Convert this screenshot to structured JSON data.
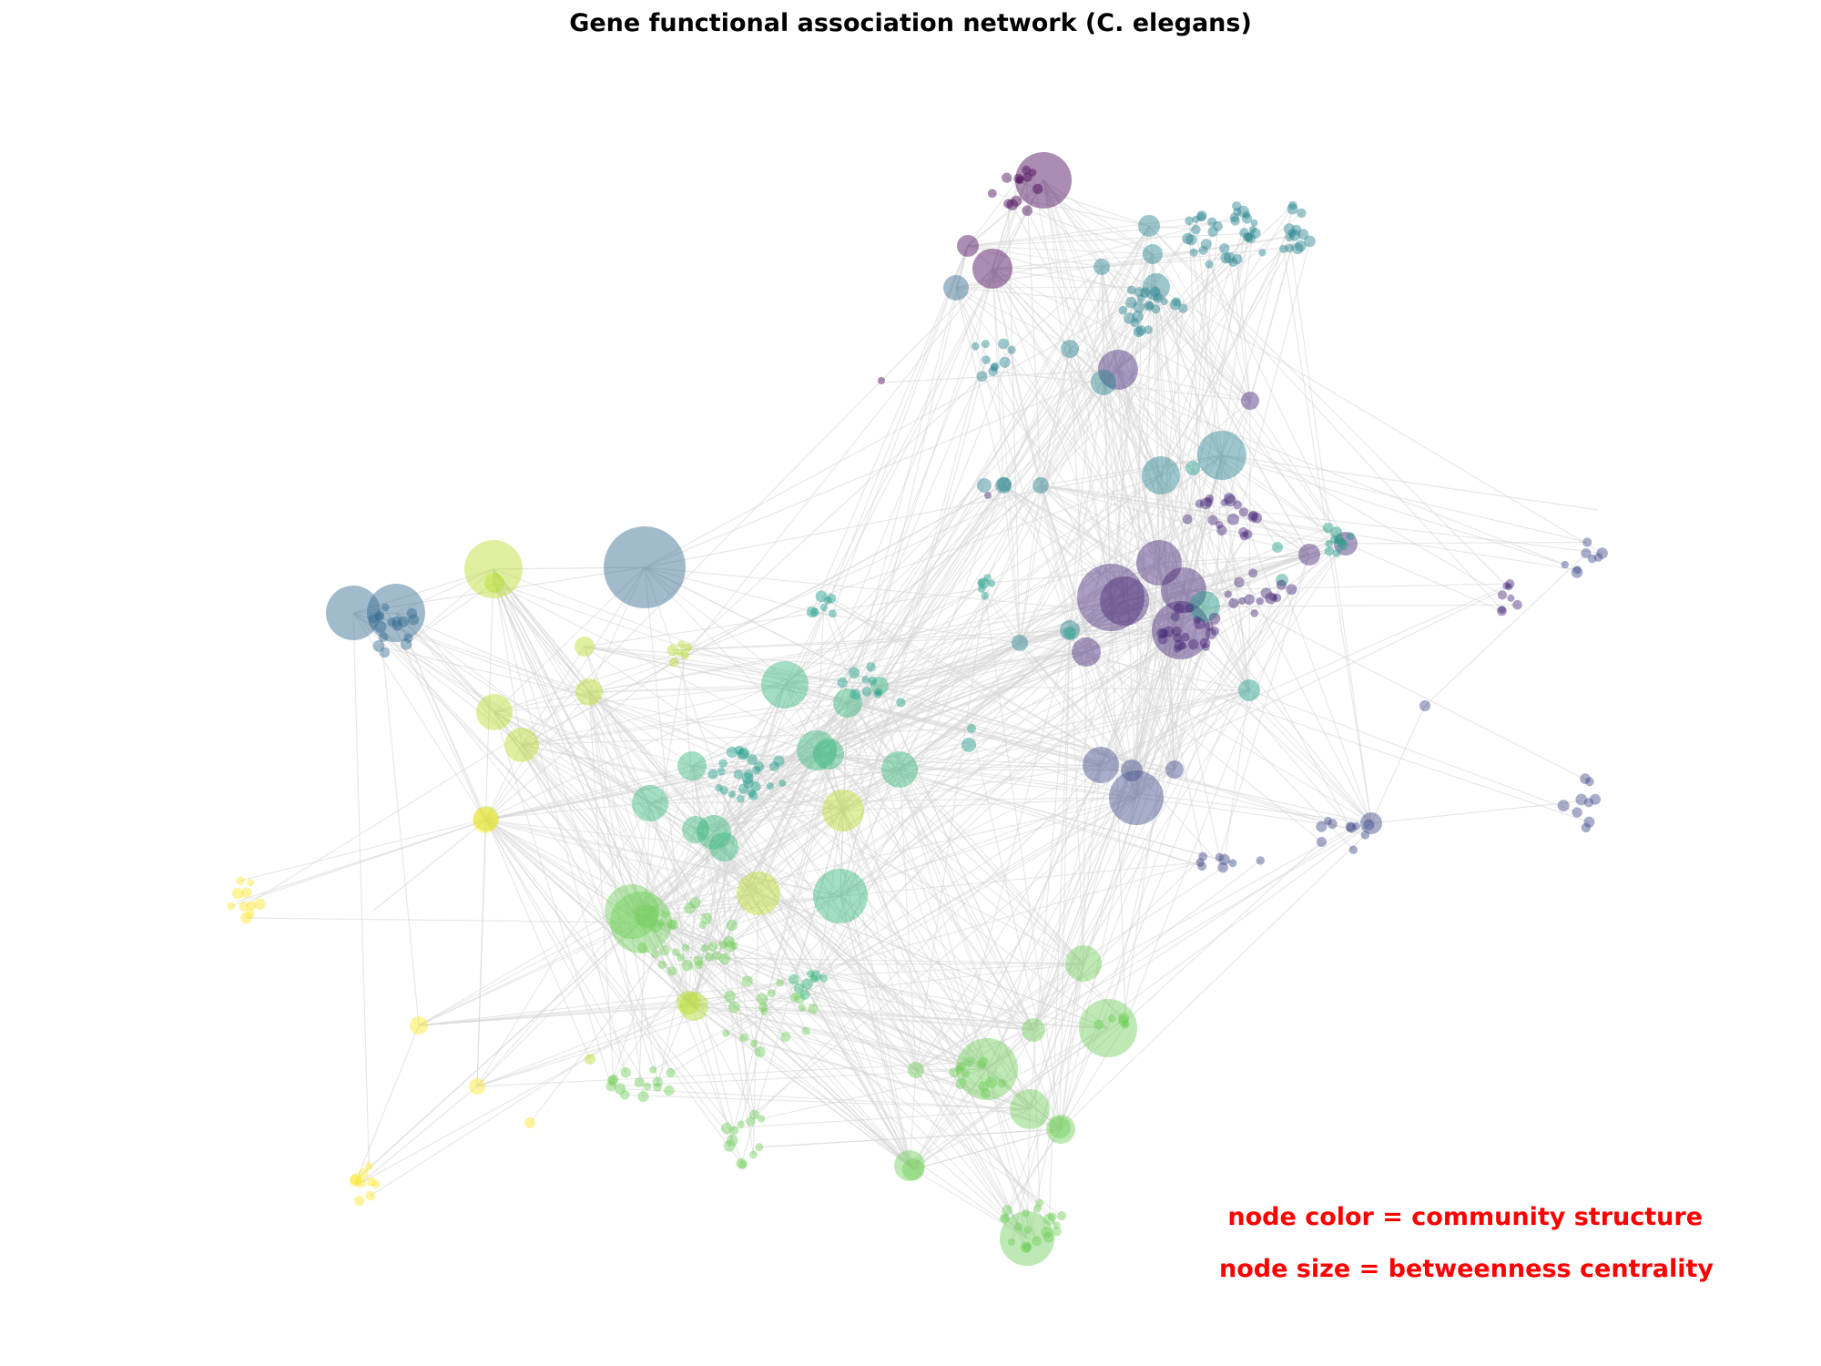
{
  "title": "Gene functional association network (C. elegans)",
  "annotations": {
    "color_text": "node color = community structure",
    "size_text": "node size = betweenness centrality",
    "text_color": "#ff0000"
  },
  "style": {
    "edge_color": "#d6d6d6",
    "node_opacity": 0.45,
    "colormap": "viridis"
  },
  "communities": [
    {
      "id": 0,
      "color": "#440154"
    },
    {
      "id": 1,
      "color": "#482878"
    },
    {
      "id": 2,
      "color": "#3e4989"
    },
    {
      "id": 3,
      "color": "#31688e"
    },
    {
      "id": 4,
      "color": "#26828e"
    },
    {
      "id": 5,
      "color": "#1f9e89"
    },
    {
      "id": 6,
      "color": "#35b779"
    },
    {
      "id": 7,
      "color": "#6ece58"
    },
    {
      "id": 8,
      "color": "#b5de2b"
    },
    {
      "id": 9,
      "color": "#fde725"
    }
  ]
}
